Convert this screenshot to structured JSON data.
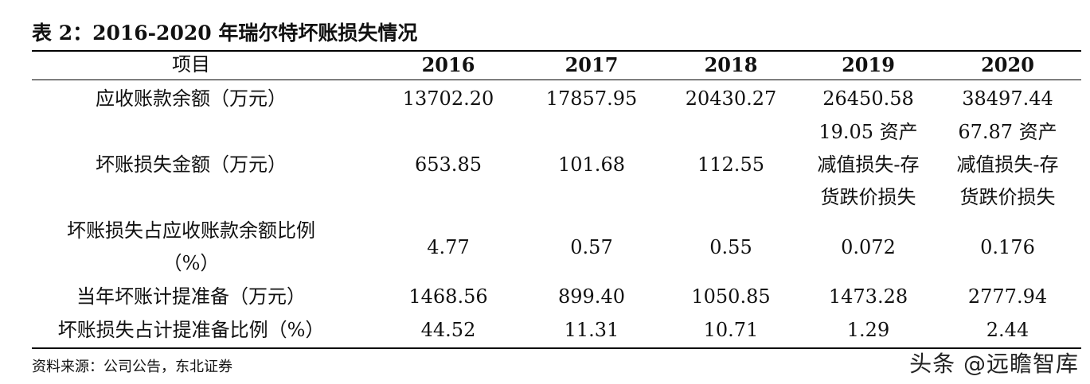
{
  "title": "表 2：2016-2020 年瑞尔特坏账损失情况",
  "header": {
    "item": "项目",
    "years": [
      "2016",
      "2017",
      "2018",
      "2019",
      "2020"
    ]
  },
  "rows": [
    {
      "label": "应收账款余额（万元）",
      "values": [
        "13702.20",
        "17857.95",
        "20430.27",
        "26450.58",
        "38497.44"
      ]
    },
    {
      "label": "坏账损失金额（万元）",
      "values": [
        "653.85",
        "101.68",
        "112.55",
        [
          "19.05 资产",
          "减值损失-存",
          "货跌价损失"
        ],
        [
          "67.87 资产",
          "减值损失-存",
          "货跌价损失"
        ]
      ]
    },
    {
      "label": [
        "坏账损失占应收账款余额比例",
        "（%）"
      ],
      "values": [
        "4.77",
        "0.57",
        "0.55",
        "0.072",
        "0.176"
      ]
    },
    {
      "label": "当年坏账计提准备（万元）",
      "values": [
        "1468.56",
        "899.40",
        "1050.85",
        "1473.28",
        "2777.94"
      ]
    },
    {
      "label": "坏账损失占计提准备比例（%）",
      "values": [
        "44.52",
        "11.31",
        "10.71",
        "1.29",
        "2.44"
      ]
    }
  ],
  "source": "资料来源：公司公告，东北证券",
  "watermark": "头条 @远瞻智库"
}
